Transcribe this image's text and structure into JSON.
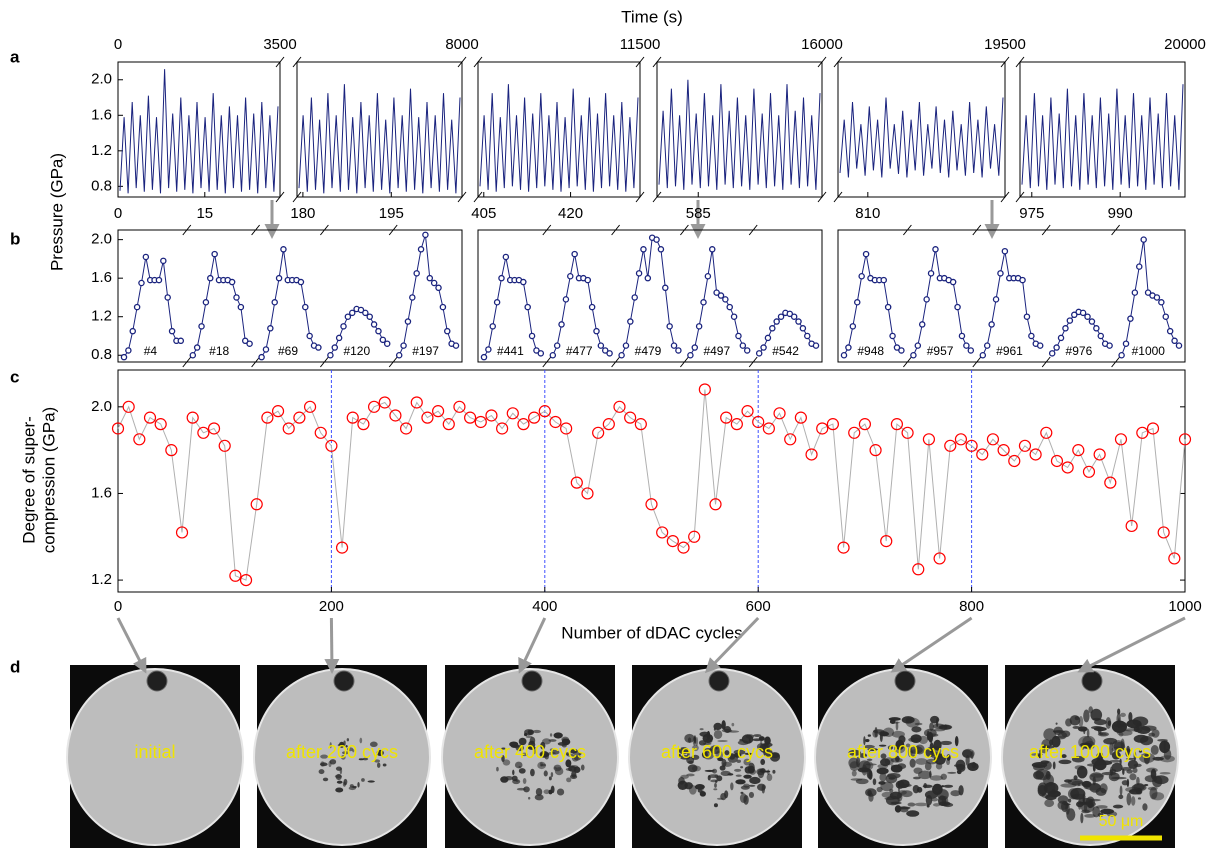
{
  "chart_data": [
    {
      "panel": "a",
      "type": "line",
      "xlabel": "Time (s)",
      "ylabel": "Pressure (GPa)",
      "color": "#1a237e",
      "ylim": [
        0.68,
        2.2
      ],
      "yticks": [
        0.8,
        1.2,
        1.6,
        {
          "value": 2,
          "label": "2.0"
        }
      ],
      "segments": [
        {
          "xlim": [
            0,
            3500
          ],
          "xticks": [
            0,
            3500
          ],
          "x2lim": [
            0,
            28
          ],
          "x2ticks": [
            0,
            15
          ],
          "values": [
            0.75,
            1.58,
            0.72,
            1.75,
            0.78,
            1.6,
            0.74,
            1.82,
            0.76,
            1.58,
            0.72,
            2.12,
            0.78,
            1.62,
            0.74,
            1.8,
            0.76,
            1.6,
            0.72,
            1.75,
            0.78,
            1.58,
            0.74,
            1.85,
            0.76,
            1.6,
            0.72,
            1.7,
            0.78,
            1.6,
            0.74,
            1.8,
            0.76,
            1.62,
            0.72,
            1.75,
            0.78,
            1.6,
            0.74,
            1.7
          ]
        },
        {
          "xlim": [
            3500,
            8000
          ],
          "xticks": [
            8000
          ],
          "x2lim": [
            179,
            207
          ],
          "x2ticks": [
            180,
            195
          ],
          "values": [
            0.78,
            1.6,
            0.74,
            1.8,
            0.76,
            1.55,
            0.72,
            1.85,
            0.78,
            1.6,
            0.74,
            1.95,
            0.76,
            1.58,
            0.72,
            1.75,
            0.78,
            1.6,
            0.74,
            1.85,
            0.76,
            1.55,
            0.72,
            1.8,
            0.78,
            1.6,
            0.74,
            1.9,
            0.76,
            1.58,
            0.72,
            1.75,
            0.78,
            1.6,
            0.74,
            1.85,
            0.76,
            1.55,
            0.72,
            1.8
          ]
        },
        {
          "xlim": [
            8000,
            11500
          ],
          "xticks": [
            11500
          ],
          "x2lim": [
            404,
            432
          ],
          "x2ticks": [
            405,
            420
          ],
          "values": [
            0.8,
            1.6,
            0.76,
            1.85,
            0.74,
            1.58,
            0.78,
            1.95,
            0.8,
            1.6,
            0.76,
            1.8,
            0.74,
            1.62,
            0.78,
            1.85,
            0.8,
            1.6,
            0.76,
            1.75,
            0.74,
            1.58,
            0.78,
            1.9,
            0.8,
            1.6,
            0.76,
            1.8,
            0.74,
            1.62,
            0.78,
            1.85,
            0.8,
            1.6,
            0.76,
            1.75,
            0.74,
            1.58,
            0.78,
            1.8
          ]
        },
        {
          "xlim": [
            11500,
            16000
          ],
          "xticks": [
            16000
          ],
          "x2lim": [
            578,
            606
          ],
          "x2ticks": [
            585
          ],
          "values": [
            0.82,
            1.65,
            0.78,
            1.9,
            0.8,
            1.6,
            0.76,
            2.0,
            0.82,
            1.62,
            0.78,
            1.85,
            0.8,
            1.6,
            0.76,
            1.95,
            0.82,
            1.65,
            0.78,
            1.8,
            0.8,
            1.6,
            0.76,
            1.9,
            0.82,
            1.62,
            0.78,
            1.85,
            0.8,
            1.6,
            0.76,
            1.95,
            0.82,
            1.65,
            0.78,
            1.8,
            0.8,
            1.6,
            0.76,
            1.85
          ]
        },
        {
          "xlim": [
            16000,
            19500
          ],
          "xticks": [
            19500
          ],
          "x2lim": [
            805,
            833
          ],
          "x2ticks": [
            810
          ],
          "values": [
            0.95,
            1.55,
            0.9,
            1.75,
            1.0,
            1.5,
            0.92,
            1.7,
            0.98,
            1.55,
            0.9,
            1.8,
            1.0,
            1.5,
            0.94,
            1.65,
            0.9,
            1.55,
            0.98,
            1.75,
            0.92,
            1.5,
            1.0,
            1.7,
            0.95,
            1.55,
            0.9,
            1.65,
            0.98,
            1.5,
            0.92,
            1.75,
            0.95,
            1.55,
            0.9,
            1.7,
            1.0,
            1.5,
            0.92,
            1.8
          ]
        },
        {
          "xlim": [
            19500,
            20000
          ],
          "xticks": [
            20000
          ],
          "x2lim": [
            973,
            1001
          ],
          "x2ticks": [
            975,
            990
          ],
          "values": [
            0.82,
            1.6,
            0.78,
            1.85,
            0.8,
            1.6,
            0.76,
            1.8,
            0.82,
            1.62,
            0.78,
            1.9,
            0.8,
            1.6,
            0.76,
            1.85,
            0.82,
            1.6,
            0.78,
            1.8,
            0.8,
            1.62,
            0.76,
            1.9,
            0.82,
            1.6,
            0.78,
            1.85,
            0.8,
            1.6,
            0.76,
            1.8,
            0.82,
            1.62,
            0.78,
            1.85,
            0.8,
            1.6,
            0.76,
            1.95
          ]
        }
      ]
    },
    {
      "panel": "b",
      "type": "cycles",
      "color": "#1a237e",
      "ylim": [
        0.73,
        2.1
      ],
      "yticks": [
        0.8,
        1.2,
        1.6,
        {
          "value": 2,
          "label": "2.0"
        }
      ],
      "panels": [
        {
          "curves": [
            {
              "label": "#4",
              "values": [
                0.78,
                0.85,
                1.05,
                1.3,
                1.55,
                1.82,
                1.58,
                1.58,
                1.58,
                1.78,
                1.4,
                1.05,
                0.95,
                0.95
              ]
            },
            {
              "label": "#18",
              "values": [
                0.8,
                0.88,
                1.1,
                1.35,
                1.6,
                1.85,
                1.58,
                1.58,
                1.58,
                1.56,
                1.4,
                1.3,
                0.95,
                0.92
              ]
            },
            {
              "label": "#69",
              "values": [
                0.78,
                0.86,
                1.08,
                1.35,
                1.6,
                1.9,
                1.58,
                1.58,
                1.58,
                1.56,
                1.3,
                1.0,
                0.9,
                0.88
              ]
            },
            {
              "label": "#120",
              "values": [
                0.8,
                0.88,
                0.98,
                1.1,
                1.2,
                1.24,
                1.28,
                1.27,
                1.24,
                1.2,
                1.12,
                1.05,
                0.96,
                0.92
              ]
            },
            {
              "label": "#197",
              "values": [
                0.8,
                0.9,
                1.15,
                1.4,
                1.65,
                1.9,
                2.05,
                1.6,
                1.55,
                1.5,
                1.3,
                1.05,
                0.92,
                0.9
              ]
            }
          ]
        },
        {
          "curves": [
            {
              "label": "#441",
              "values": [
                0.78,
                0.86,
                1.1,
                1.35,
                1.6,
                1.82,
                1.58,
                1.58,
                1.58,
                1.56,
                1.3,
                1.0,
                0.85,
                0.82
              ]
            },
            {
              "label": "#477",
              "values": [
                0.8,
                0.9,
                1.12,
                1.38,
                1.62,
                1.85,
                1.6,
                1.6,
                1.58,
                1.3,
                1.05,
                0.9,
                0.85,
                0.82
              ]
            },
            {
              "label": "#479",
              "values": [
                0.8,
                0.9,
                1.15,
                1.4,
                1.65,
                1.9,
                1.6,
                2.02,
                2.0,
                1.9,
                1.5,
                1.1,
                0.9,
                0.85
              ]
            },
            {
              "label": "#497",
              "values": [
                0.8,
                0.88,
                1.1,
                1.35,
                1.62,
                1.9,
                1.45,
                1.42,
                1.38,
                1.3,
                1.2,
                1.0,
                0.9,
                0.85
              ]
            },
            {
              "label": "#542",
              "values": [
                0.82,
                0.88,
                0.98,
                1.08,
                1.15,
                1.2,
                1.24,
                1.23,
                1.2,
                1.15,
                1.08,
                1.0,
                0.92,
                0.9
              ]
            }
          ]
        },
        {
          "curves": [
            {
              "label": "#948",
              "values": [
                0.8,
                0.88,
                1.1,
                1.35,
                1.62,
                1.85,
                1.6,
                1.58,
                1.58,
                1.58,
                1.3,
                1.0,
                0.88,
                0.85
              ]
            },
            {
              "label": "#957",
              "values": [
                0.8,
                0.9,
                1.12,
                1.38,
                1.65,
                1.9,
                1.6,
                1.6,
                1.58,
                1.56,
                1.3,
                1.0,
                0.9,
                0.85
              ]
            },
            {
              "label": "#961",
              "values": [
                0.8,
                0.9,
                1.12,
                1.38,
                1.65,
                1.88,
                1.6,
                1.6,
                1.6,
                1.58,
                1.2,
                1.0,
                0.92,
                0.9
              ]
            },
            {
              "label": "#976",
              "values": [
                0.82,
                0.88,
                0.98,
                1.08,
                1.16,
                1.22,
                1.25,
                1.24,
                1.2,
                1.15,
                1.08,
                1.0,
                0.92,
                0.9
              ]
            },
            {
              "label": "#1000",
              "values": [
                0.8,
                0.92,
                1.18,
                1.45,
                1.72,
                2.0,
                1.45,
                1.42,
                1.4,
                1.35,
                1.2,
                1.05,
                0.95,
                0.9
              ]
            }
          ]
        }
      ]
    },
    {
      "panel": "c",
      "type": "scatter",
      "xlabel": "Number of dDAC cycles",
      "ylabel": [
        "Degree of super-",
        "compression (GPa)"
      ],
      "color": "#ff0000",
      "line_color": "#b0b0b0",
      "vline_color": "#3f51ff",
      "xlim": [
        0,
        1000
      ],
      "xticks": [
        0,
        200,
        400,
        600,
        800,
        1000
      ],
      "ylim": [
        1.145,
        2.17
      ],
      "yticks": [
        1.2,
        1.6,
        {
          "value": 2,
          "label": "2.0"
        }
      ],
      "vlines": [
        200,
        400,
        600,
        800
      ],
      "x": [
        0,
        10,
        20,
        30,
        40,
        50,
        60,
        70,
        80,
        90,
        100,
        110,
        120,
        130,
        140,
        150,
        160,
        170,
        180,
        190,
        200,
        210,
        220,
        230,
        240,
        250,
        260,
        270,
        280,
        290,
        300,
        310,
        320,
        330,
        340,
        350,
        360,
        370,
        380,
        390,
        400,
        410,
        420,
        430,
        440,
        450,
        460,
        470,
        480,
        490,
        500,
        510,
        520,
        530,
        540,
        550,
        560,
        570,
        580,
        590,
        600,
        610,
        620,
        630,
        640,
        650,
        660,
        670,
        680,
        690,
        700,
        710,
        720,
        730,
        740,
        750,
        760,
        770,
        780,
        790,
        800,
        810,
        820,
        830,
        840,
        850,
        860,
        870,
        880,
        890,
        900,
        910,
        920,
        930,
        940,
        950,
        960,
        970,
        980,
        990,
        1000
      ],
      "values": [
        1.9,
        2.0,
        1.85,
        1.95,
        1.92,
        1.8,
        1.42,
        1.95,
        1.88,
        1.9,
        1.82,
        1.22,
        1.2,
        1.55,
        1.95,
        1.98,
        1.9,
        1.95,
        2.0,
        1.88,
        1.82,
        1.35,
        1.95,
        1.92,
        2.0,
        2.02,
        1.96,
        1.9,
        2.02,
        1.95,
        1.98,
        1.92,
        2.0,
        1.95,
        1.93,
        1.96,
        1.9,
        1.97,
        1.92,
        1.95,
        1.98,
        1.93,
        1.9,
        1.65,
        1.6,
        1.88,
        1.92,
        2.0,
        1.95,
        1.92,
        1.55,
        1.42,
        1.38,
        1.35,
        1.4,
        2.08,
        1.55,
        1.95,
        1.92,
        1.98,
        1.93,
        1.9,
        1.97,
        1.85,
        1.95,
        1.78,
        1.9,
        1.92,
        1.35,
        1.88,
        1.92,
        1.8,
        1.38,
        1.92,
        1.88,
        1.25,
        1.85,
        1.3,
        1.82,
        1.85,
        1.82,
        1.78,
        1.85,
        1.8,
        1.75,
        1.82,
        1.78,
        1.88,
        1.75,
        1.72,
        1.8,
        1.7,
        1.78,
        1.65,
        1.85,
        1.45,
        1.88,
        1.9,
        1.42,
        1.3,
        1.85
      ]
    },
    {
      "panel": "d",
      "type": "images",
      "captions": [
        "initial",
        "after 200 cycs",
        "after 400 cycs",
        "after 600 cycs",
        "after 800 cycs",
        "after 1000 cycs"
      ],
      "scale_bar": "50 μm"
    }
  ]
}
